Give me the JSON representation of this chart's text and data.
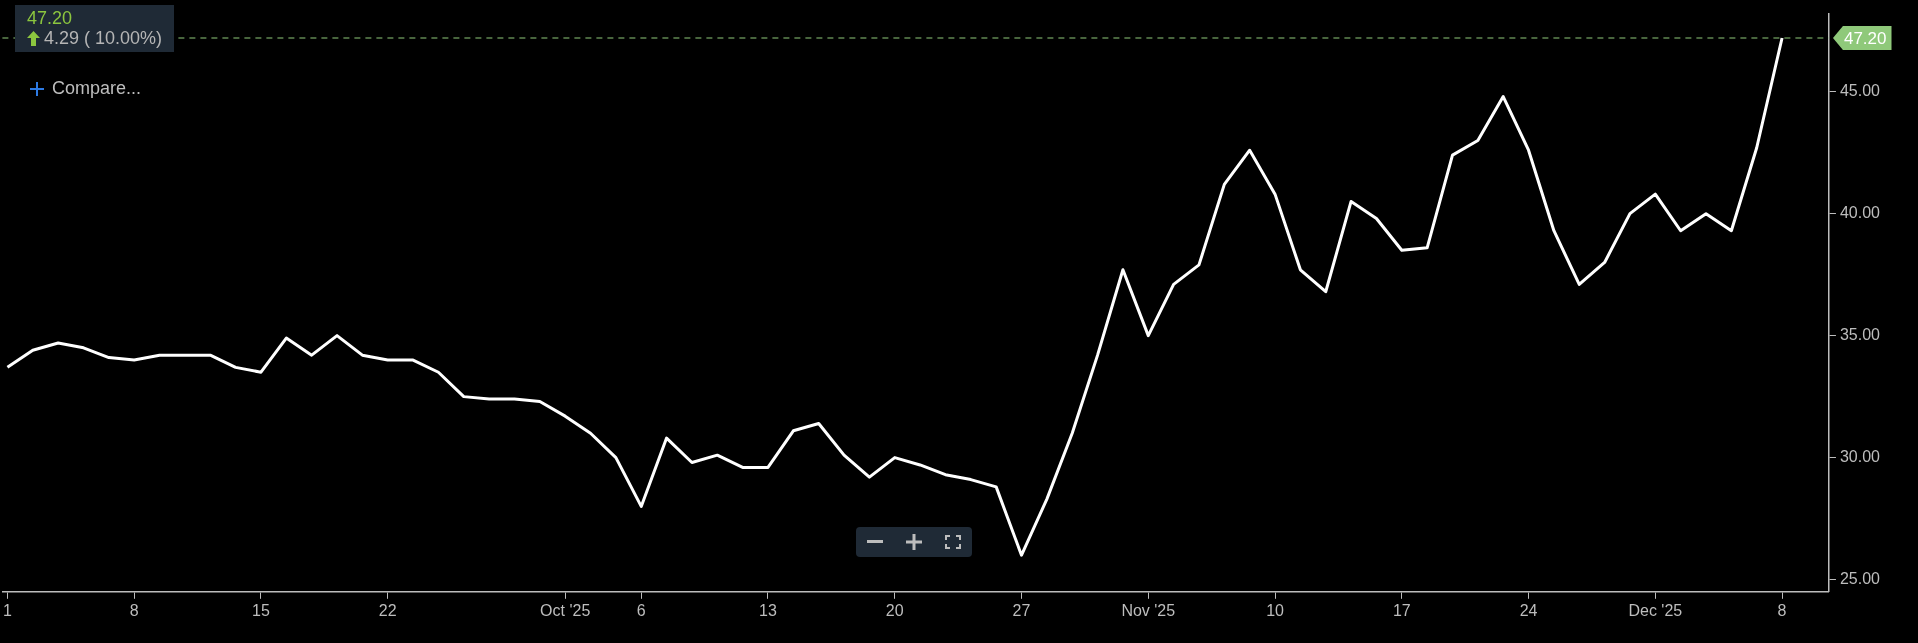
{
  "chart_data": {
    "type": "line",
    "title": "47.20",
    "subtitle": "4.29 ( 10.00%)",
    "annotations": [
      "Compare..."
    ],
    "categories": [
      "1",
      null,
      null,
      null,
      null,
      "8",
      null,
      null,
      null,
      null,
      "15",
      null,
      null,
      null,
      null,
      "22",
      null,
      null,
      null,
      null,
      null,
      null,
      "Oct '25",
      null,
      null,
      "6",
      null,
      null,
      null,
      null,
      "13",
      null,
      null,
      null,
      null,
      "20",
      null,
      null,
      null,
      null,
      "27",
      null,
      null,
      null,
      null,
      "Nov '25",
      null,
      null,
      null,
      null,
      "10",
      null,
      null,
      null,
      null,
      "17",
      null,
      null,
      null,
      null,
      "24",
      null,
      null,
      null,
      null,
      "Dec '25",
      null,
      null,
      null,
      null,
      "8"
    ],
    "series": [
      {
        "color": "#ffffff",
        "values": [
          33.7,
          34.4,
          34.7,
          34.5,
          34.1,
          34.0,
          34.2,
          34.2,
          34.2,
          33.7,
          33.5,
          34.9,
          34.2,
          35.0,
          34.2,
          34.0,
          34.0,
          33.5,
          32.5,
          32.4,
          32.4,
          32.3,
          31.7,
          31.0,
          30.0,
          28.0,
          30.8,
          29.8,
          30.1,
          29.6,
          29.6,
          31.1,
          31.4,
          30.1,
          29.2,
          30.0,
          29.7,
          29.3,
          29.1,
          28.8,
          26.0,
          28.3,
          31.0,
          34.2,
          37.7,
          35.0,
          37.1,
          37.9,
          41.2,
          42.6,
          40.8,
          37.7,
          36.8,
          40.5,
          39.8,
          38.5,
          38.6,
          42.4,
          43.0,
          44.8,
          42.6,
          39.3,
          37.1,
          38.0,
          40.0,
          40.8,
          39.3,
          40.0,
          39.3,
          42.7,
          47.2
        ]
      }
    ],
    "ylim": [
      24.5,
      48.2
    ],
    "yticks": [
      {
        "value": 25,
        "label": "25.00"
      },
      {
        "value": 30,
        "label": "30.00"
      },
      {
        "value": 35,
        "label": "35.00"
      },
      {
        "value": 40,
        "label": "40.00"
      },
      {
        "value": 45,
        "label": "45.00"
      }
    ],
    "ref_lines": [
      {
        "axis": "y",
        "value": 47.2,
        "label": "47.20",
        "color": "#8fc97a",
        "line_style": "dashed"
      }
    ],
    "grid": false,
    "legend": false,
    "marker": "none"
  }
}
